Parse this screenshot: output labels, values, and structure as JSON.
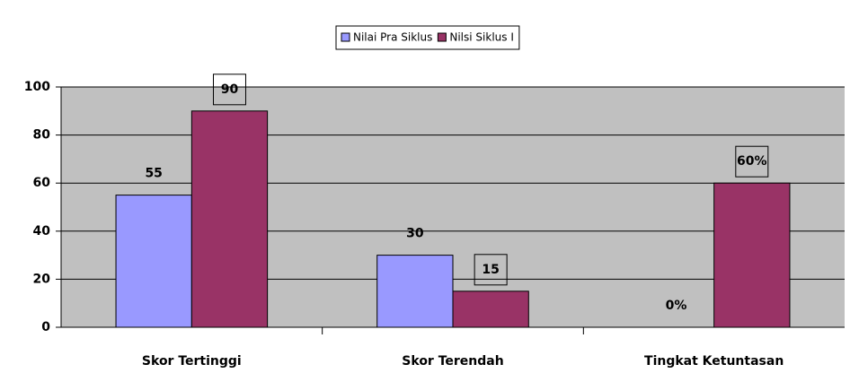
{
  "chart_data": {
    "type": "bar",
    "categories": [
      "Skor Tertinggi",
      "Skor Terendah",
      "Tingkat Ketuntasan"
    ],
    "series": [
      {
        "name": "Nilai Pra Siklus",
        "color": "#9999ff",
        "values": [
          55,
          30,
          0
        ],
        "value_labels": [
          "55",
          "30",
          "0%"
        ]
      },
      {
        "name": "Nilsi Siklus I",
        "color": "#993366",
        "values": [
          90,
          15,
          60
        ],
        "value_labels": [
          "90",
          "15",
          "60%"
        ]
      }
    ],
    "ylim": [
      0,
      100
    ],
    "yticks": [
      0,
      20,
      40,
      60,
      80,
      100
    ],
    "grid": true,
    "legend": "top"
  }
}
